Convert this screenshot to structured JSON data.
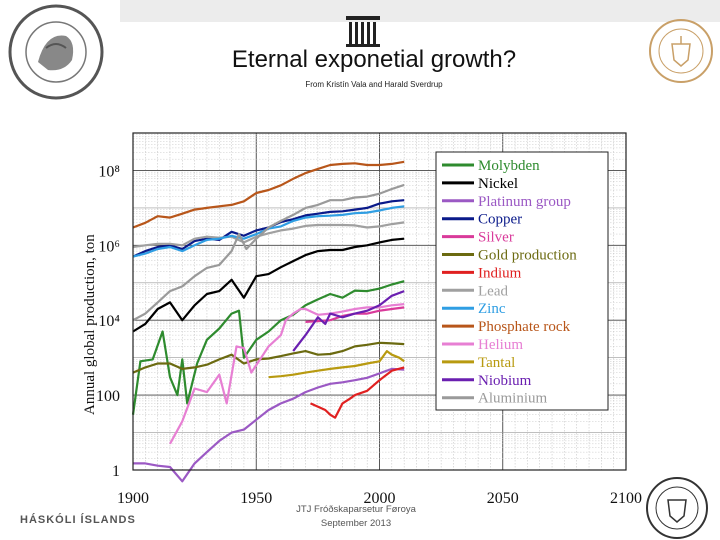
{
  "slide": {
    "title": "Eternal exponetial growth?",
    "subtitle": "From Kristín Vala and Harald Sverdrup",
    "footer_left": "HÁSKÓLI ÍSLANDS",
    "footer_line1": "JTJ Fróðskaparsetur Føroya",
    "footer_line2": "September 2013",
    "logo_left_text": "UNIVERSITATIS ISLANDIAE SIGILLUM"
  },
  "chart_data": {
    "type": "line",
    "title": "",
    "xlabel": "",
    "ylabel": "Annual global production, ton",
    "x_ticks": [
      "1900",
      "1950",
      "2000",
      "2050",
      "2100"
    ],
    "y_ticks": [
      "1",
      "100",
      "10⁴",
      "10⁶",
      "10⁸"
    ],
    "xlim": [
      1900,
      2100
    ],
    "ylim_log10": [
      0,
      9
    ],
    "grid": true,
    "legend_position": "top-right",
    "series": [
      {
        "name": "Molybden",
        "color": "#2e8b2e",
        "points": [
          [
            1900,
            30
          ],
          [
            1903,
            800
          ],
          [
            1908,
            900
          ],
          [
            1912,
            5000
          ],
          [
            1915,
            300
          ],
          [
            1918,
            100
          ],
          [
            1920,
            900
          ],
          [
            1922,
            60
          ],
          [
            1926,
            700
          ],
          [
            1930,
            3000
          ],
          [
            1935,
            6000
          ],
          [
            1940,
            15000
          ],
          [
            1943,
            18000
          ],
          [
            1945,
            1000
          ],
          [
            1950,
            3000
          ],
          [
            1955,
            5000
          ],
          [
            1960,
            10000
          ],
          [
            1965,
            14000
          ],
          [
            1970,
            25000
          ],
          [
            1975,
            36000
          ],
          [
            1980,
            50000
          ],
          [
            1985,
            40000
          ],
          [
            1990,
            62000
          ],
          [
            1995,
            60000
          ],
          [
            2000,
            70000
          ],
          [
            2005,
            90000
          ],
          [
            2010,
            110000
          ]
        ]
      },
      {
        "name": "Nickel",
        "color": "#000000",
        "points": [
          [
            1900,
            5000
          ],
          [
            1905,
            8000
          ],
          [
            1910,
            20000
          ],
          [
            1915,
            30000
          ],
          [
            1920,
            10000
          ],
          [
            1925,
            25000
          ],
          [
            1930,
            50000
          ],
          [
            1935,
            60000
          ],
          [
            1940,
            120000
          ],
          [
            1945,
            40000
          ],
          [
            1950,
            150000
          ],
          [
            1955,
            170000
          ],
          [
            1960,
            260000
          ],
          [
            1965,
            380000
          ],
          [
            1970,
            550000
          ],
          [
            1975,
            700000
          ],
          [
            1980,
            750000
          ],
          [
            1985,
            750000
          ],
          [
            1990,
            900000
          ],
          [
            1995,
            1000000
          ],
          [
            2000,
            1200000
          ],
          [
            2005,
            1400000
          ],
          [
            2010,
            1500000
          ]
        ]
      },
      {
        "name": "Platinum group",
        "color": "#9b59c4",
        "points": [
          [
            1900,
            1.5
          ],
          [
            1905,
            1.5
          ],
          [
            1910,
            1.3
          ],
          [
            1915,
            1.2
          ],
          [
            1920,
            0.5
          ],
          [
            1925,
            1.5
          ],
          [
            1930,
            3
          ],
          [
            1935,
            6
          ],
          [
            1940,
            10
          ],
          [
            1945,
            12
          ],
          [
            1950,
            22
          ],
          [
            1955,
            40
          ],
          [
            1960,
            60
          ],
          [
            1965,
            80
          ],
          [
            1970,
            120
          ],
          [
            1975,
            160
          ],
          [
            1980,
            200
          ],
          [
            1985,
            220
          ],
          [
            1990,
            250
          ],
          [
            1995,
            290
          ],
          [
            2000,
            380
          ],
          [
            2005,
            500
          ],
          [
            2010,
            480
          ]
        ]
      },
      {
        "name": "Copper",
        "color": "#0a1a8a",
        "points": [
          [
            1900,
            500000
          ],
          [
            1905,
            700000
          ],
          [
            1910,
            900000
          ],
          [
            1915,
            1000000
          ],
          [
            1920,
            800000
          ],
          [
            1925,
            1300000
          ],
          [
            1930,
            1500000
          ],
          [
            1935,
            1400000
          ],
          [
            1940,
            2300000
          ],
          [
            1945,
            1800000
          ],
          [
            1950,
            2500000
          ],
          [
            1955,
            3000000
          ],
          [
            1960,
            4200000
          ],
          [
            1965,
            5000000
          ],
          [
            1970,
            6300000
          ],
          [
            1975,
            7000000
          ],
          [
            1980,
            7800000
          ],
          [
            1985,
            8100000
          ],
          [
            1990,
            9000000
          ],
          [
            1995,
            10000000
          ],
          [
            2000,
            13000000
          ],
          [
            2005,
            15000000
          ],
          [
            2010,
            16000000
          ]
        ]
      },
      {
        "name": "Silver",
        "color": "#d93a9a",
        "points": [
          [
            1970,
            9000
          ],
          [
            1975,
            9500
          ],
          [
            1980,
            10000
          ],
          [
            1985,
            13000
          ],
          [
            1990,
            15000
          ],
          [
            1995,
            15000
          ],
          [
            2000,
            18000
          ],
          [
            2005,
            20000
          ],
          [
            2010,
            22000
          ]
        ]
      },
      {
        "name": "Gold production",
        "color": "#6b6a10",
        "points": [
          [
            1900,
            400
          ],
          [
            1905,
            550
          ],
          [
            1910,
            700
          ],
          [
            1915,
            700
          ],
          [
            1920,
            500
          ],
          [
            1925,
            550
          ],
          [
            1930,
            650
          ],
          [
            1935,
            900
          ],
          [
            1940,
            1200
          ],
          [
            1945,
            700
          ],
          [
            1950,
            900
          ],
          [
            1955,
            950
          ],
          [
            1960,
            1100
          ],
          [
            1965,
            1300
          ],
          [
            1970,
            1500
          ],
          [
            1975,
            1200
          ],
          [
            1980,
            1250
          ],
          [
            1985,
            1500
          ],
          [
            1990,
            2000
          ],
          [
            1995,
            2200
          ],
          [
            2000,
            2500
          ],
          [
            2005,
            2400
          ],
          [
            2010,
            2300
          ]
        ]
      },
      {
        "name": "Indium",
        "color": "#e02020",
        "points": [
          [
            1972,
            60
          ],
          [
            1978,
            40
          ],
          [
            1980,
            30
          ],
          [
            1982,
            25
          ],
          [
            1985,
            60
          ],
          [
            1988,
            80
          ],
          [
            1990,
            100
          ],
          [
            1995,
            130
          ],
          [
            2000,
            250
          ],
          [
            2005,
            450
          ],
          [
            2010,
            550
          ]
        ]
      },
      {
        "name": "Lead",
        "color": "#a0a0a0",
        "points": [
          [
            1900,
            900000
          ],
          [
            1905,
            1000000
          ],
          [
            1910,
            1100000
          ],
          [
            1915,
            1100000
          ],
          [
            1920,
            1000000
          ],
          [
            1925,
            1500000
          ],
          [
            1930,
            1700000
          ],
          [
            1935,
            1600000
          ],
          [
            1940,
            1700000
          ],
          [
            1945,
            1200000
          ],
          [
            1950,
            1700000
          ],
          [
            1955,
            2100000
          ],
          [
            1960,
            2500000
          ],
          [
            1965,
            2800000
          ],
          [
            1970,
            3300000
          ],
          [
            1975,
            3500000
          ],
          [
            1980,
            3500000
          ],
          [
            1985,
            3500000
          ],
          [
            1990,
            3400000
          ],
          [
            1995,
            3000000
          ],
          [
            2000,
            3200000
          ],
          [
            2005,
            3700000
          ],
          [
            2010,
            4100000
          ]
        ]
      },
      {
        "name": "Zinc",
        "color": "#2f9ee3",
        "points": [
          [
            1900,
            500000
          ],
          [
            1905,
            600000
          ],
          [
            1910,
            800000
          ],
          [
            1915,
            900000
          ],
          [
            1920,
            700000
          ],
          [
            1925,
            1000000
          ],
          [
            1930,
            1400000
          ],
          [
            1935,
            1500000
          ],
          [
            1940,
            1800000
          ],
          [
            1945,
            1500000
          ],
          [
            1950,
            2000000
          ],
          [
            1955,
            2800000
          ],
          [
            1960,
            3200000
          ],
          [
            1965,
            4500000
          ],
          [
            1970,
            5500000
          ],
          [
            1975,
            6000000
          ],
          [
            1980,
            6200000
          ],
          [
            1985,
            6500000
          ],
          [
            1990,
            7200000
          ],
          [
            1995,
            7500000
          ],
          [
            2000,
            8500000
          ],
          [
            2005,
            10000000
          ],
          [
            2010,
            11000000
          ]
        ]
      },
      {
        "name": "Phosphate rock",
        "color": "#b8561a",
        "points": [
          [
            1900,
            3000000
          ],
          [
            1905,
            4000000
          ],
          [
            1910,
            6000000
          ],
          [
            1915,
            5500000
          ],
          [
            1920,
            7000000
          ],
          [
            1925,
            9000000
          ],
          [
            1930,
            10000000
          ],
          [
            1935,
            11000000
          ],
          [
            1940,
            12000000
          ],
          [
            1945,
            15000000
          ],
          [
            1950,
            25000000
          ],
          [
            1955,
            30000000
          ],
          [
            1960,
            40000000
          ],
          [
            1965,
            60000000
          ],
          [
            1970,
            85000000
          ],
          [
            1975,
            110000000
          ],
          [
            1980,
            140000000
          ],
          [
            1985,
            150000000
          ],
          [
            1990,
            155000000
          ],
          [
            1995,
            140000000
          ],
          [
            2000,
            140000000
          ],
          [
            2005,
            150000000
          ],
          [
            2010,
            170000000
          ]
        ]
      },
      {
        "name": "Helium",
        "color": "#e77fd3",
        "points": [
          [
            1915,
            5
          ],
          [
            1920,
            20
          ],
          [
            1925,
            150
          ],
          [
            1930,
            120
          ],
          [
            1935,
            350
          ],
          [
            1938,
            60
          ],
          [
            1942,
            2000
          ],
          [
            1945,
            1800
          ],
          [
            1948,
            400
          ],
          [
            1952,
            1000
          ],
          [
            1955,
            2000
          ],
          [
            1960,
            4000
          ],
          [
            1962,
            10000
          ],
          [
            1965,
            15000
          ],
          [
            1968,
            20000
          ],
          [
            1970,
            20000
          ],
          [
            1975,
            14000
          ],
          [
            1980,
            15000
          ],
          [
            1985,
            17000
          ],
          [
            1990,
            20000
          ],
          [
            1995,
            22000
          ],
          [
            2000,
            22000
          ],
          [
            2005,
            25000
          ],
          [
            2010,
            27000
          ]
        ]
      },
      {
        "name": "Tantal",
        "color": "#b89a10",
        "points": [
          [
            1955,
            300
          ],
          [
            1960,
            320
          ],
          [
            1965,
            350
          ],
          [
            1970,
            400
          ],
          [
            1975,
            450
          ],
          [
            1980,
            500
          ],
          [
            1985,
            550
          ],
          [
            1990,
            600
          ],
          [
            1995,
            700
          ],
          [
            2000,
            800
          ],
          [
            2003,
            1500
          ],
          [
            2005,
            1200
          ],
          [
            2008,
            1000
          ],
          [
            2010,
            800
          ]
        ]
      },
      {
        "name": "Niobium",
        "color": "#6a1fb0",
        "points": [
          [
            1965,
            1500
          ],
          [
            1970,
            4000
          ],
          [
            1975,
            12000
          ],
          [
            1978,
            8000
          ],
          [
            1980,
            15000
          ],
          [
            1985,
            12000
          ],
          [
            1990,
            15000
          ],
          [
            1995,
            18000
          ],
          [
            2000,
            25000
          ],
          [
            2005,
            45000
          ],
          [
            2010,
            60000
          ]
        ]
      },
      {
        "name": "Aluminium",
        "color": "#9a9a9a",
        "points": [
          [
            1900,
            10000
          ],
          [
            1905,
            15000
          ],
          [
            1910,
            30000
          ],
          [
            1915,
            60000
          ],
          [
            1920,
            80000
          ],
          [
            1925,
            150000
          ],
          [
            1930,
            250000
          ],
          [
            1935,
            300000
          ],
          [
            1940,
            700000
          ],
          [
            1943,
            2000000
          ],
          [
            1946,
            800000
          ],
          [
            1950,
            1500000
          ],
          [
            1955,
            3000000
          ],
          [
            1960,
            4500000
          ],
          [
            1965,
            6500000
          ],
          [
            1970,
            10000000
          ],
          [
            1975,
            12000000
          ],
          [
            1980,
            16000000
          ],
          [
            1985,
            16000000
          ],
          [
            1990,
            19000000
          ],
          [
            1995,
            20000000
          ],
          [
            2000,
            24000000
          ],
          [
            2005,
            32000000
          ],
          [
            2010,
            41000000
          ]
        ]
      }
    ]
  }
}
